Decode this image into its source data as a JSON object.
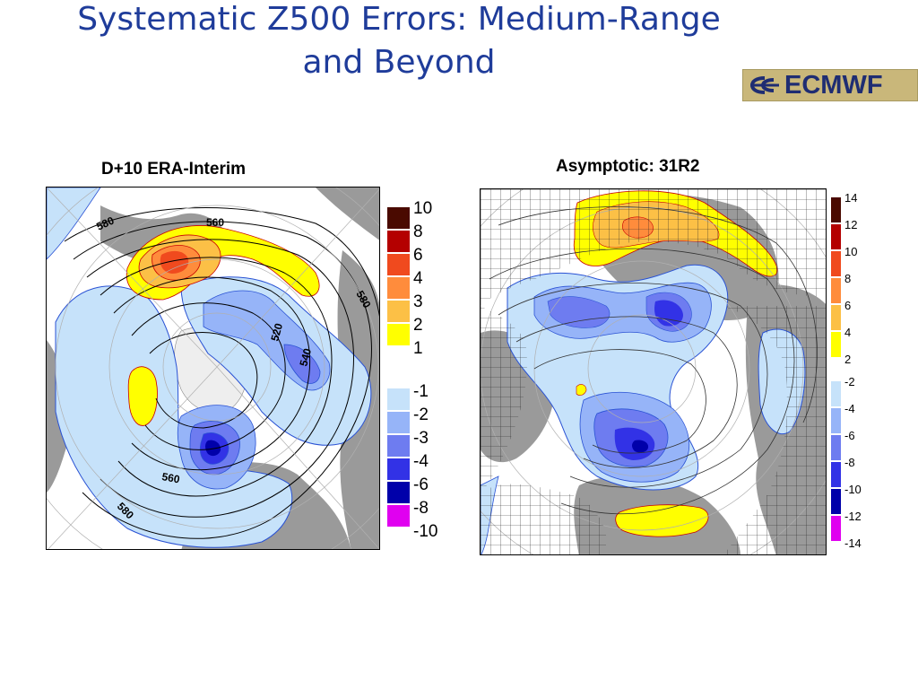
{
  "slide": {
    "title_line1": "Systematic Z500 Errors: Medium-Range",
    "title_line2": "and Beyond",
    "logo_text": "ECMWF"
  },
  "colors": {
    "title": "#1f3c9a",
    "land": "#9a9a9a",
    "positive_scale": [
      "#ffff00",
      "#fcc046",
      "#ff8c3c",
      "#f04a1e",
      "#b40000",
      "#4a0a00"
    ],
    "negative_scale": [
      "#c6e2fa",
      "#96b4f8",
      "#6e7cf0",
      "#3232e6",
      "#0000aa",
      "#e000f0"
    ]
  },
  "maps": [
    {
      "title": "D+10 ERA-Interim",
      "legend": {
        "positive_labels": [
          "10",
          "8",
          "6",
          "4",
          "3",
          "2",
          "1"
        ],
        "negative_labels": [
          "-1",
          "-2",
          "-3",
          "-4",
          "-6",
          "-8",
          "-10"
        ]
      },
      "contour_labels": [
        "580",
        "560",
        "580",
        "520",
        "540",
        "560",
        "580"
      ]
    },
    {
      "title": "Asymptotic: 31R2",
      "legend": {
        "positive_labels": [
          "14",
          "12",
          "10",
          "8",
          "6",
          "4",
          "2"
        ],
        "negative_labels": [
          "-2",
          "-4",
          "-6",
          "-8",
          "-10",
          "-12",
          "-14"
        ]
      }
    }
  ]
}
